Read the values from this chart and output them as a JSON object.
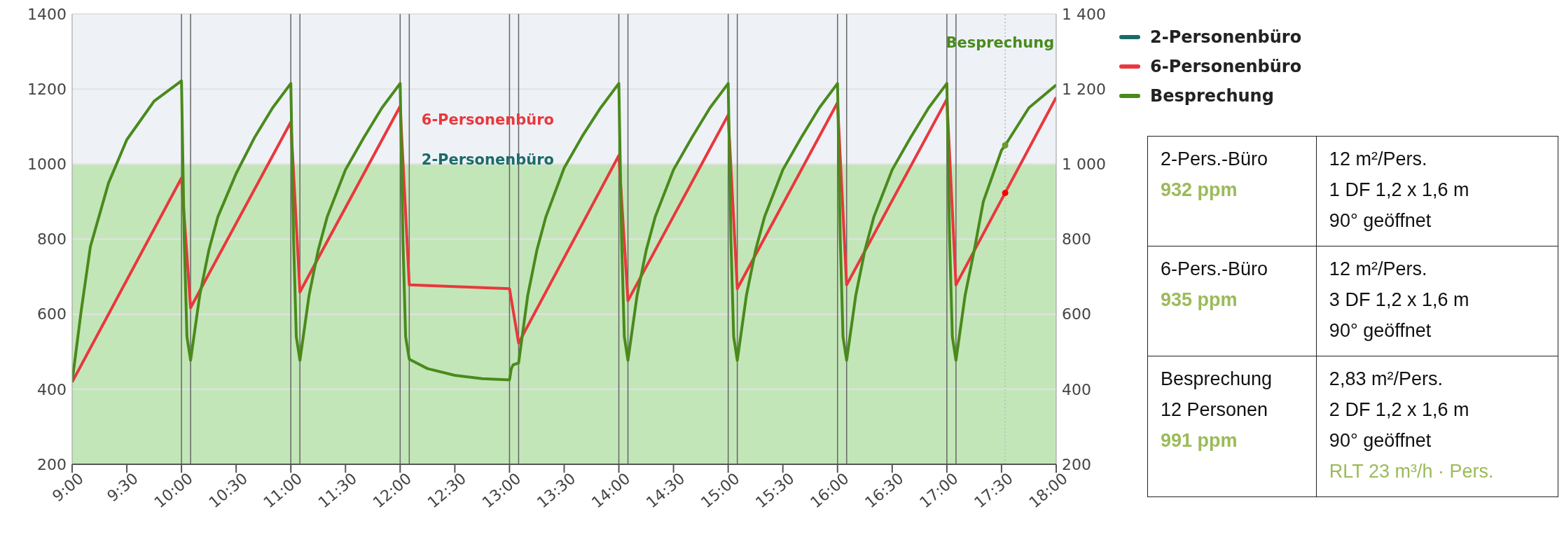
{
  "chart_data": {
    "type": "line",
    "xlim": [
      9,
      18
    ],
    "xticks": [
      {
        "value": 9,
        "label": "9:00"
      },
      {
        "value": 9.5,
        "label": "9:30"
      },
      {
        "value": 10,
        "label": "10:00"
      },
      {
        "value": 10.5,
        "label": "10:30"
      },
      {
        "value": 11,
        "label": "11:00"
      },
      {
        "value": 11.5,
        "label": "11:30"
      },
      {
        "value": 12,
        "label": "12:00"
      },
      {
        "value": 12.5,
        "label": "12:30"
      },
      {
        "value": 13,
        "label": "13:00"
      },
      {
        "value": 13.5,
        "label": "13:30"
      },
      {
        "value": 14,
        "label": "14:00"
      },
      {
        "value": 14.5,
        "label": "14:30"
      },
      {
        "value": 15,
        "label": "15:00"
      },
      {
        "value": 15.5,
        "label": "15:30"
      },
      {
        "value": 16,
        "label": "16:00"
      },
      {
        "value": 16.5,
        "label": "16:30"
      },
      {
        "value": 17,
        "label": "17:00"
      },
      {
        "value": 17.5,
        "label": "17:30"
      },
      {
        "value": 18,
        "label": "18:00"
      }
    ],
    "ylim": [
      200,
      1400
    ],
    "yticks": [
      200,
      400,
      600,
      800,
      1000,
      1200,
      1400
    ],
    "y2lim": [
      200,
      1400
    ],
    "y2ticks": [
      200,
      400,
      600,
      800,
      {
        "value": 1000,
        "label": "1 000"
      },
      {
        "value": 1200,
        "label": "1 200"
      },
      {
        "value": 1400,
        "label": "1 400"
      }
    ],
    "grid": "y",
    "legend": "top right",
    "marker": "none",
    "line_style": "solid",
    "series": [
      {
        "name": "2-Personenbüro",
        "color": "#1b6b68"
      },
      {
        "name": "6-Personenbüro",
        "color": "#e8383d",
        "x": [
          9,
          10,
          10.0833,
          11,
          11.0833,
          12,
          12.0833,
          13,
          13.0833,
          14,
          14.0833,
          15,
          15.0833,
          16,
          16.0833,
          17,
          17.0833,
          18
        ],
        "values": [
          419,
          963,
          617,
          1112,
          659,
          1154,
          678,
          668,
          523,
          1023,
          636,
          1131,
          668,
          1164,
          678,
          1173,
          678,
          1178
        ]
      },
      {
        "name": "Besprechung",
        "color": "#4a8a1c",
        "x": [
          9,
          9.0833,
          9.1667,
          9.3333,
          9.5,
          9.75,
          10,
          10.025,
          10.05,
          10.0833,
          10.1667,
          10.25,
          10.3333,
          10.5,
          10.6667,
          10.8333,
          11,
          11.025,
          11.05,
          11.0833,
          11.1667,
          11.25,
          11.3333,
          11.5,
          11.6667,
          11.8333,
          12,
          12.025,
          12.05,
          12.0833,
          12.25,
          12.5,
          12.75,
          13,
          13.0167,
          13.0333,
          13.0833,
          13.1667,
          13.25,
          13.3333,
          13.5,
          13.6667,
          13.8333,
          14,
          14.025,
          14.05,
          14.0833,
          14.1667,
          14.25,
          14.3333,
          14.5,
          14.6667,
          14.8333,
          15,
          15.025,
          15.05,
          15.0833,
          15.1667,
          15.25,
          15.3333,
          15.5,
          15.6667,
          15.8333,
          16,
          16.025,
          16.05,
          16.0833,
          16.1667,
          16.25,
          16.3333,
          16.5,
          16.6667,
          16.8333,
          17,
          17.025,
          17.05,
          17.0833,
          17.1667,
          17.25,
          17.3333,
          17.5,
          17.5333,
          17.75,
          18
        ],
        "values": [
          420,
          610,
          780,
          950,
          1065,
          1168,
          1222,
          800,
          540,
          477,
          650,
          770,
          860,
          975,
          1070,
          1150,
          1215,
          800,
          540,
          477,
          650,
          770,
          860,
          985,
          1070,
          1150,
          1215,
          800,
          540,
          480,
          455,
          437,
          428,
          425,
          455,
          465,
          470,
          650,
          770,
          860,
          990,
          1075,
          1150,
          1215,
          800,
          540,
          477,
          650,
          770,
          860,
          985,
          1070,
          1150,
          1215,
          800,
          540,
          477,
          650,
          770,
          860,
          985,
          1070,
          1150,
          1215,
          800,
          540,
          477,
          650,
          770,
          860,
          985,
          1070,
          1150,
          1215,
          800,
          540,
          477,
          650,
          770,
          900,
          1037,
          1050,
          1150,
          1211
        ]
      },
      {
        "type": "scatter",
        "color": "#6b9a2e",
        "marker": "circle",
        "x": [
          17.5333
        ],
        "values": [
          1050
        ]
      },
      {
        "type": "scatter",
        "color": "#ff0000",
        "marker": "circle",
        "x": [
          17.5333
        ],
        "values": [
          923
        ]
      }
    ],
    "bands": [
      {
        "axis": "y",
        "from": 200,
        "to": 1000,
        "color": "#c3e6b8"
      },
      {
        "axis": "y",
        "from": 1000,
        "to": 1400,
        "color": "#eef2f6"
      }
    ],
    "ref_lines": [
      {
        "axis": "x",
        "value": 10,
        "color": "#666666"
      },
      {
        "axis": "x",
        "value": 10.0833,
        "color": "#666666"
      },
      {
        "axis": "x",
        "value": 11,
        "color": "#666666"
      },
      {
        "axis": "x",
        "value": 11.0833,
        "color": "#666666"
      },
      {
        "axis": "x",
        "value": 12,
        "color": "#666666"
      },
      {
        "axis": "x",
        "value": 12.0833,
        "color": "#666666"
      },
      {
        "axis": "x",
        "value": 13,
        "color": "#666666"
      },
      {
        "axis": "x",
        "value": 13.0833,
        "color": "#666666"
      },
      {
        "axis": "x",
        "value": 14,
        "color": "#666666"
      },
      {
        "axis": "x",
        "value": 14.0833,
        "color": "#666666"
      },
      {
        "axis": "x",
        "value": 15,
        "color": "#666666"
      },
      {
        "axis": "x",
        "value": 15.0833,
        "color": "#666666"
      },
      {
        "axis": "x",
        "value": 16,
        "color": "#666666"
      },
      {
        "axis": "x",
        "value": 16.0833,
        "color": "#666666"
      },
      {
        "axis": "x",
        "value": 17,
        "color": "#666666"
      },
      {
        "axis": "x",
        "value": 17.0833,
        "color": "#666666"
      },
      {
        "axis": "x",
        "value": 17.5333,
        "color": "#bbbbbb",
        "line_style": "dotted"
      }
    ],
    "annotations": [
      "2-Personenbüro",
      "6-Personenbüro",
      "Besprechung",
      "2-Pers.-Büro",
      "932 ppm",
      "12 m²/Pers.",
      "1 DF 1,2 x 1,6 m",
      "90° geöffnet",
      "6-Pers.-Büro",
      "935 ppm",
      "12 m²/Pers.",
      "3 DF 1,2 x 1,6 m",
      "90° geöffnet",
      "Besprechung",
      "12 Personen",
      "991 ppm",
      "2,83 m²/Pers.",
      "2 DF 1,2 x 1,6 m",
      "90° geöffnet",
      "RLT 23 m³/h · Pers."
    ]
  }
}
